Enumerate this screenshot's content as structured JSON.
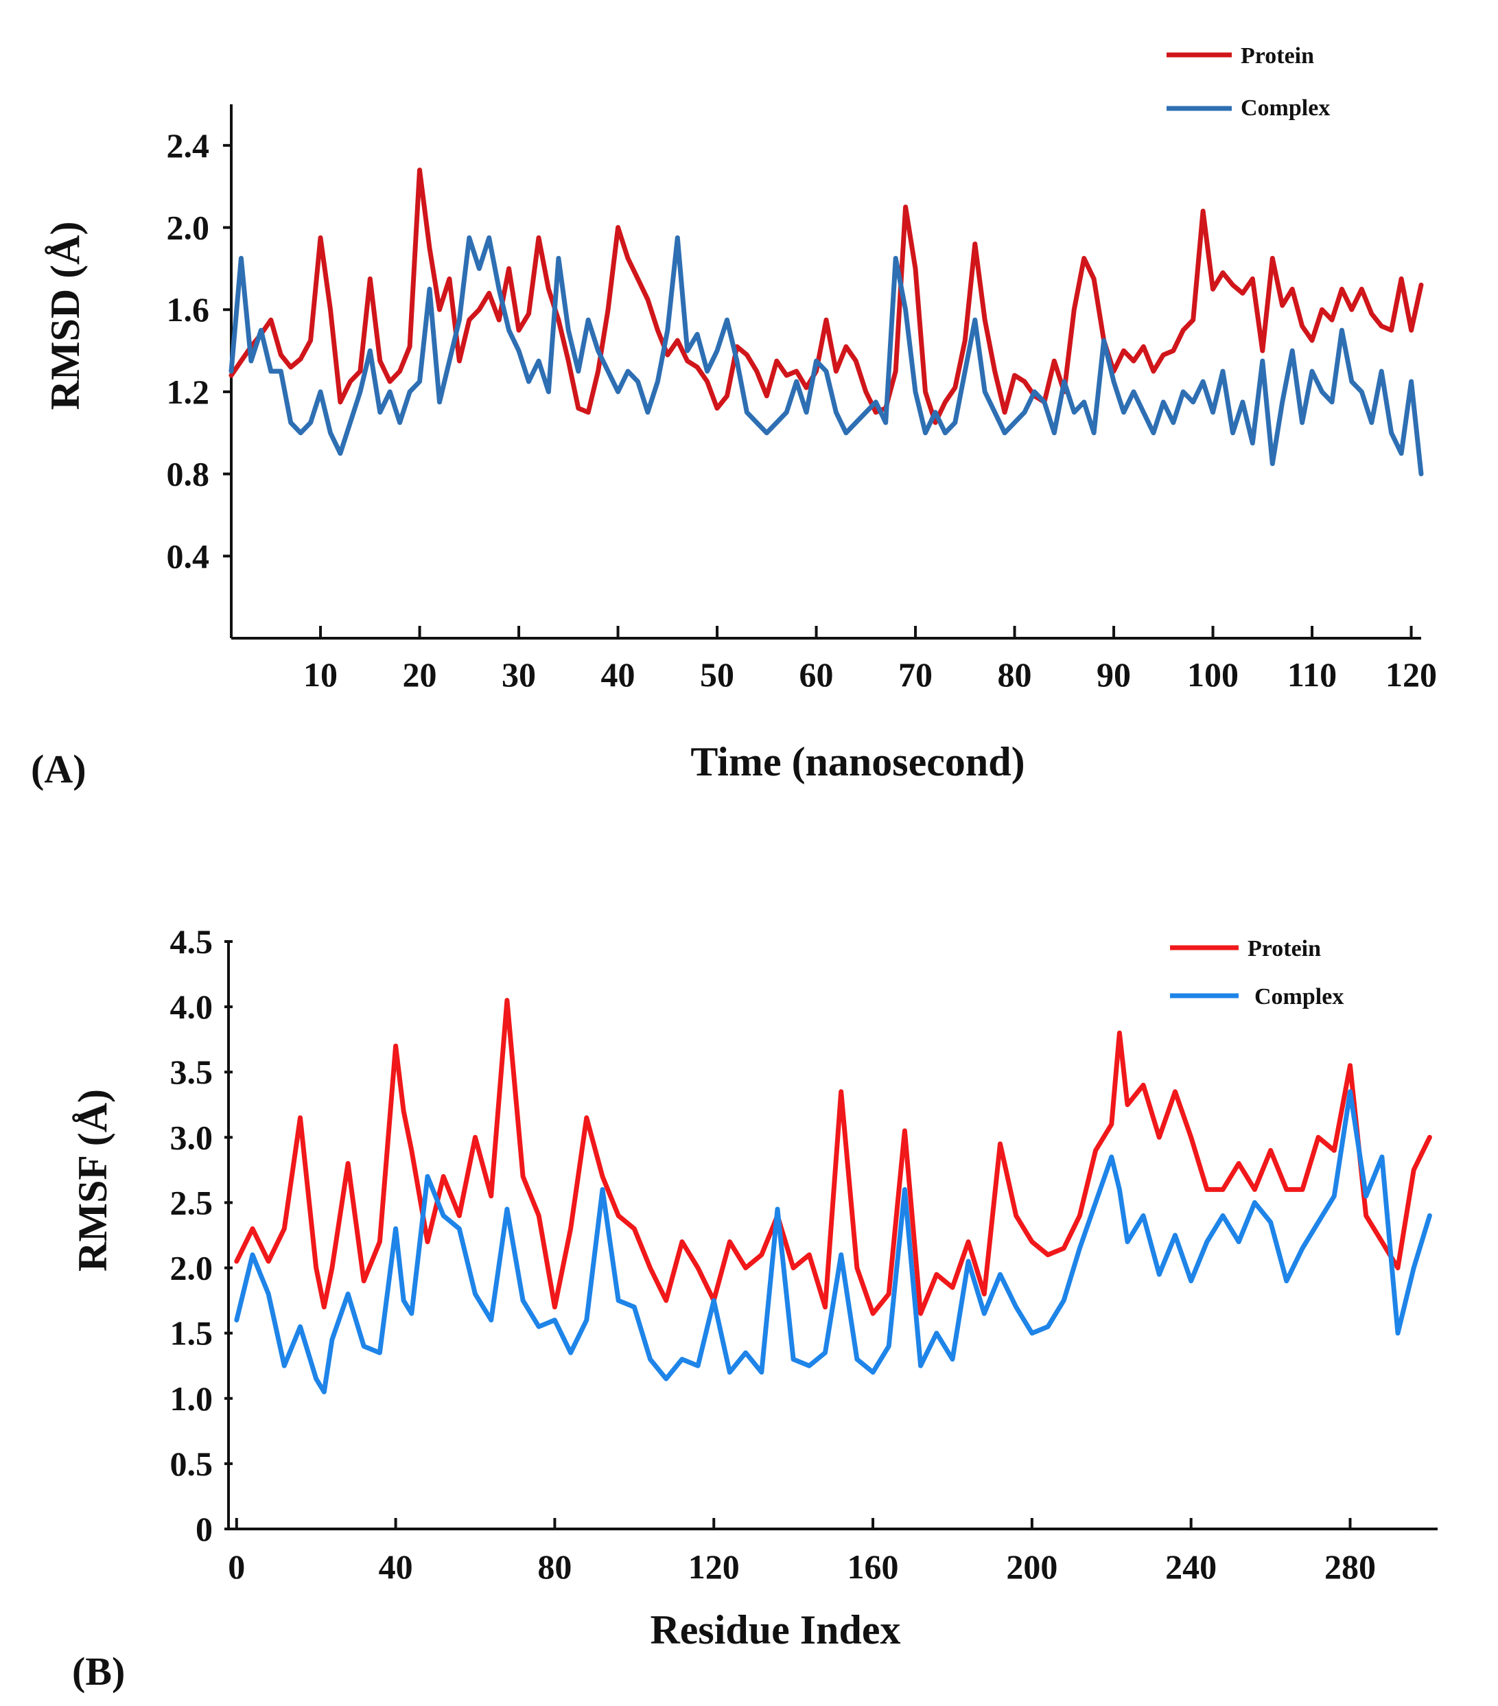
{
  "chart_data": [
    {
      "type": "line",
      "panel_label": "(A)",
      "xlabel": "Time (nanosecond)",
      "ylabel": "RMSD (Å)",
      "xlim": [
        1,
        121
      ],
      "ylim": [
        0.0,
        2.6
      ],
      "xticks": [
        10,
        20,
        30,
        40,
        50,
        60,
        70,
        80,
        90,
        100,
        110,
        120
      ],
      "yticks": [
        0.4,
        0.8,
        1.2,
        1.6,
        2.0,
        2.4
      ],
      "ytick_labels": [
        "0.4",
        "0.8",
        "1.2",
        "1.6",
        "2.0",
        "2.4"
      ],
      "legend_position": "top-right",
      "series": [
        {
          "name": "Protein",
          "color": "#d0161b",
          "x": [
            1,
            2,
            3,
            4,
            5,
            6,
            7,
            8,
            9,
            10,
            11,
            12,
            13,
            14,
            15,
            16,
            17,
            18,
            19,
            20,
            21,
            22,
            23,
            24,
            25,
            26,
            27,
            28,
            29,
            30,
            31,
            32,
            33,
            34,
            35,
            36,
            37,
            38,
            39,
            40,
            41,
            42,
            43,
            44,
            45,
            46,
            47,
            48,
            49,
            50,
            51,
            52,
            53,
            54,
            55,
            56,
            57,
            58,
            59,
            60,
            61,
            62,
            63,
            64,
            65,
            66,
            67,
            68,
            69,
            70,
            71,
            72,
            73,
            74,
            75,
            76,
            77,
            78,
            79,
            80,
            81,
            82,
            83,
            84,
            85,
            86,
            87,
            88,
            89,
            90,
            91,
            92,
            93,
            94,
            95,
            96,
            97,
            98,
            99,
            100,
            101,
            102,
            103,
            104,
            105,
            106,
            107,
            108,
            109,
            110,
            111,
            112,
            113,
            114,
            115,
            116,
            117,
            118,
            119,
            120,
            121
          ],
          "values": [
            1.28,
            1.35,
            1.42,
            1.48,
            1.55,
            1.38,
            1.32,
            1.36,
            1.45,
            1.95,
            1.6,
            1.15,
            1.25,
            1.3,
            1.75,
            1.35,
            1.25,
            1.3,
            1.42,
            2.28,
            1.9,
            1.6,
            1.75,
            1.35,
            1.55,
            1.6,
            1.68,
            1.55,
            1.8,
            1.5,
            1.58,
            1.95,
            1.7,
            1.55,
            1.35,
            1.12,
            1.1,
            1.3,
            1.6,
            2.0,
            1.85,
            1.75,
            1.65,
            1.5,
            1.38,
            1.45,
            1.35,
            1.32,
            1.25,
            1.12,
            1.18,
            1.42,
            1.38,
            1.3,
            1.18,
            1.35,
            1.28,
            1.3,
            1.22,
            1.3,
            1.55,
            1.3,
            1.42,
            1.35,
            1.2,
            1.1,
            1.12,
            1.3,
            2.1,
            1.8,
            1.2,
            1.05,
            1.15,
            1.22,
            1.45,
            1.92,
            1.55,
            1.3,
            1.1,
            1.28,
            1.25,
            1.18,
            1.15,
            1.35,
            1.2,
            1.6,
            1.85,
            1.75,
            1.45,
            1.3,
            1.4,
            1.35,
            1.42,
            1.3,
            1.38,
            1.4,
            1.5,
            1.55,
            2.08,
            1.7,
            1.78,
            1.72,
            1.68,
            1.75,
            1.4,
            1.85,
            1.62,
            1.7,
            1.52,
            1.45,
            1.6,
            1.55,
            1.7,
            1.6,
            1.7,
            1.58,
            1.52,
            1.5,
            1.75,
            1.5,
            1.72
          ]
        },
        {
          "name": "Complex",
          "color": "#2e6fb3",
          "x": [
            1,
            2,
            3,
            4,
            5,
            6,
            7,
            8,
            9,
            10,
            11,
            12,
            13,
            14,
            15,
            16,
            17,
            18,
            19,
            20,
            21,
            22,
            23,
            24,
            25,
            26,
            27,
            28,
            29,
            30,
            31,
            32,
            33,
            34,
            35,
            36,
            37,
            38,
            39,
            40,
            41,
            42,
            43,
            44,
            45,
            46,
            47,
            48,
            49,
            50,
            51,
            52,
            53,
            54,
            55,
            56,
            57,
            58,
            59,
            60,
            61,
            62,
            63,
            64,
            65,
            66,
            67,
            68,
            69,
            70,
            71,
            72,
            73,
            74,
            75,
            76,
            77,
            78,
            79,
            80,
            81,
            82,
            83,
            84,
            85,
            86,
            87,
            88,
            89,
            90,
            91,
            92,
            93,
            94,
            95,
            96,
            97,
            98,
            99,
            100,
            101,
            102,
            103,
            104,
            105,
            106,
            107,
            108,
            109,
            110,
            111,
            112,
            113,
            114,
            115,
            116,
            117,
            118,
            119,
            120,
            121
          ],
          "values": [
            1.3,
            1.85,
            1.35,
            1.5,
            1.3,
            1.3,
            1.05,
            1.0,
            1.05,
            1.2,
            1.0,
            0.9,
            1.05,
            1.2,
            1.4,
            1.1,
            1.2,
            1.05,
            1.2,
            1.25,
            1.7,
            1.15,
            1.35,
            1.55,
            1.95,
            1.8,
            1.95,
            1.7,
            1.5,
            1.4,
            1.25,
            1.35,
            1.2,
            1.85,
            1.5,
            1.3,
            1.55,
            1.4,
            1.3,
            1.2,
            1.3,
            1.25,
            1.1,
            1.25,
            1.5,
            1.95,
            1.4,
            1.48,
            1.3,
            1.4,
            1.55,
            1.35,
            1.1,
            1.05,
            1.0,
            1.05,
            1.1,
            1.25,
            1.1,
            1.35,
            1.3,
            1.1,
            1.0,
            1.05,
            1.1,
            1.15,
            1.05,
            1.85,
            1.6,
            1.2,
            1.0,
            1.1,
            1.0,
            1.05,
            1.3,
            1.55,
            1.2,
            1.1,
            1.0,
            1.05,
            1.1,
            1.2,
            1.15,
            1.0,
            1.25,
            1.1,
            1.15,
            1.0,
            1.45,
            1.25,
            1.1,
            1.2,
            1.1,
            1.0,
            1.15,
            1.05,
            1.2,
            1.15,
            1.25,
            1.1,
            1.3,
            1.0,
            1.15,
            0.95,
            1.35,
            0.85,
            1.15,
            1.4,
            1.05,
            1.3,
            1.2,
            1.15,
            1.5,
            1.25,
            1.2,
            1.05,
            1.3,
            1.0,
            0.9,
            1.25,
            0.8
          ]
        }
      ]
    },
    {
      "type": "line",
      "panel_label": "(B)",
      "xlabel": "Residue Index",
      "ylabel": "RMSF (Å)",
      "xlim": [
        -1,
        302
      ],
      "ylim": [
        0,
        4.5
      ],
      "xticks": [
        0,
        40,
        80,
        120,
        160,
        200,
        240,
        280
      ],
      "yticks": [
        0,
        0.5,
        1.0,
        1.5,
        2.0,
        2.5,
        3.0,
        3.5,
        4.0,
        4.5
      ],
      "ytick_labels": [
        "0",
        "0.5",
        "1.0",
        "1.5",
        "2.0",
        "2.5",
        "3.0",
        "3.5",
        "4.0",
        "4.5"
      ],
      "legend_position": "top-right",
      "series": [
        {
          "name": "Protein",
          "color": "#f0181a",
          "x": [
            0,
            4,
            8,
            12,
            16,
            20,
            22,
            24,
            28,
            32,
            36,
            40,
            42,
            44,
            48,
            52,
            56,
            60,
            64,
            68,
            72,
            76,
            80,
            84,
            88,
            92,
            96,
            100,
            104,
            108,
            112,
            116,
            120,
            124,
            128,
            132,
            136,
            140,
            144,
            148,
            152,
            156,
            160,
            164,
            168,
            172,
            176,
            180,
            184,
            188,
            192,
            196,
            200,
            204,
            208,
            212,
            216,
            220,
            222,
            224,
            228,
            232,
            236,
            240,
            244,
            248,
            252,
            256,
            260,
            264,
            268,
            272,
            276,
            280,
            284,
            288,
            292,
            296,
            300
          ],
          "values": [
            2.05,
            2.3,
            2.05,
            2.3,
            3.15,
            2.0,
            1.7,
            2.0,
            2.8,
            1.9,
            2.2,
            3.7,
            3.2,
            2.9,
            2.2,
            2.7,
            2.4,
            3.0,
            2.55,
            4.05,
            2.7,
            2.4,
            1.7,
            2.3,
            3.15,
            2.7,
            2.4,
            2.3,
            2.0,
            1.75,
            2.2,
            2.0,
            1.75,
            2.2,
            2.0,
            2.1,
            2.4,
            2.0,
            2.1,
            1.7,
            3.35,
            2.0,
            1.65,
            1.8,
            3.05,
            1.65,
            1.95,
            1.85,
            2.2,
            1.8,
            2.95,
            2.4,
            2.2,
            2.1,
            2.15,
            2.4,
            2.9,
            3.1,
            3.8,
            3.25,
            3.4,
            3.0,
            3.35,
            3.0,
            2.6,
            2.6,
            2.8,
            2.6,
            2.9,
            2.6,
            2.6,
            3.0,
            2.9,
            3.55,
            2.4,
            2.2,
            2.0,
            2.75,
            3.0
          ]
        },
        {
          "name": "Complex",
          "color": "#1e84e8",
          "x": [
            0,
            4,
            8,
            12,
            16,
            20,
            22,
            24,
            28,
            32,
            36,
            40,
            42,
            44,
            48,
            52,
            56,
            60,
            64,
            68,
            72,
            76,
            80,
            84,
            88,
            92,
            96,
            100,
            104,
            108,
            112,
            116,
            120,
            124,
            128,
            132,
            136,
            140,
            144,
            148,
            152,
            156,
            160,
            164,
            168,
            172,
            176,
            180,
            184,
            188,
            192,
            196,
            200,
            204,
            208,
            212,
            216,
            220,
            222,
            224,
            228,
            232,
            236,
            240,
            244,
            248,
            252,
            256,
            260,
            264,
            268,
            272,
            276,
            280,
            284,
            288,
            292,
            296,
            300
          ],
          "values": [
            1.6,
            2.1,
            1.8,
            1.25,
            1.55,
            1.15,
            1.05,
            1.45,
            1.8,
            1.4,
            1.35,
            2.3,
            1.75,
            1.65,
            2.7,
            2.4,
            2.3,
            1.8,
            1.6,
            2.45,
            1.75,
            1.55,
            1.6,
            1.35,
            1.6,
            2.6,
            1.75,
            1.7,
            1.3,
            1.15,
            1.3,
            1.25,
            1.75,
            1.2,
            1.35,
            1.2,
            2.45,
            1.3,
            1.25,
            1.35,
            2.1,
            1.3,
            1.2,
            1.4,
            2.6,
            1.25,
            1.5,
            1.3,
            2.05,
            1.65,
            1.95,
            1.7,
            1.5,
            1.55,
            1.75,
            2.15,
            2.5,
            2.85,
            2.6,
            2.2,
            2.4,
            1.95,
            2.25,
            1.9,
            2.2,
            2.4,
            2.2,
            2.5,
            2.35,
            1.9,
            2.15,
            2.35,
            2.55,
            3.35,
            2.55,
            2.85,
            1.5,
            2.0,
            2.4
          ]
        }
      ]
    }
  ]
}
